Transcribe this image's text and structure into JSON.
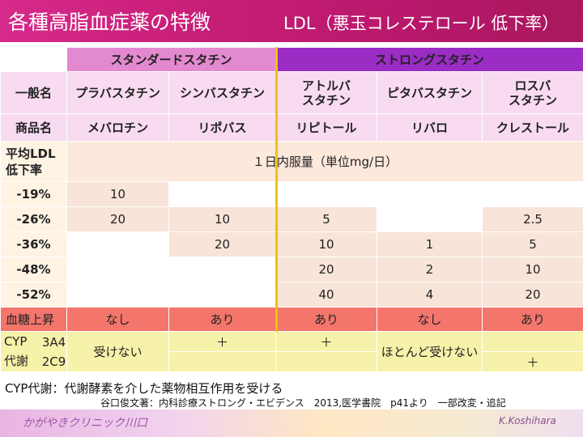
{
  "title": "各種高脂血症薬の特徴",
  "subtitle": "LDL（悪玉コレステロール 低下率）",
  "categories": {
    "standard": "スタンダードスタチン",
    "strong": "ストロングスタチン"
  },
  "row_labels": {
    "generic": "一般名",
    "brand": "商品名",
    "ldl_line1": "平均LDL",
    "ldl_line2": "低下率",
    "dose_header": "１日内服量（単位mg/日）",
    "blood_sugar": "血糖上昇",
    "cyp_line1": "CYP",
    "cyp_line2": "代謝",
    "cyp_3a4": "3A4",
    "cyp_2c9": "2C9"
  },
  "drugs": [
    {
      "generic": "プラバスタチン",
      "brand": "メバロチン"
    },
    {
      "generic": "シンバスタチン",
      "brand": "リポバス"
    },
    {
      "generic_l1": "アトルバ",
      "generic_l2": "スタチン",
      "brand": "リピトール"
    },
    {
      "generic": "ピタバスタチン",
      "brand": "リバロ"
    },
    {
      "generic_l1": "ロスバ",
      "generic_l2": "スタチン",
      "brand": "クレストール"
    }
  ],
  "reductions": [
    "-19%",
    "-26%",
    "-36%",
    "-48%",
    "-52%"
  ],
  "doses": {
    "r19": [
      "10",
      "",
      "",
      "",
      ""
    ],
    "r26": [
      "20",
      "10",
      "5",
      "",
      "2.5"
    ],
    "r36": [
      "",
      "20",
      "10",
      "1",
      "5"
    ],
    "r48": [
      "",
      "",
      "20",
      "2",
      "10"
    ],
    "r52": [
      "",
      "",
      "40",
      "4",
      "20"
    ]
  },
  "blood_sugar": [
    "なし",
    "あり",
    "あり",
    "なし",
    "あり"
  ],
  "cyp": {
    "prava": "受けない",
    "simva_3a4": "＋",
    "atorva_3a4": "＋",
    "pita": "ほとんど受けない",
    "rosu_2c9": "＋"
  },
  "footnote1": "CYP代謝：代謝酵素を介した薬物相互作用を受ける",
  "footnote2": "谷口俊文著：内科診療ストロング・エビデンス　2013,医学書院　p41より　一部改変・追記",
  "clinic": "かがやきクリニック川口",
  "author": "K.Koshihara"
}
